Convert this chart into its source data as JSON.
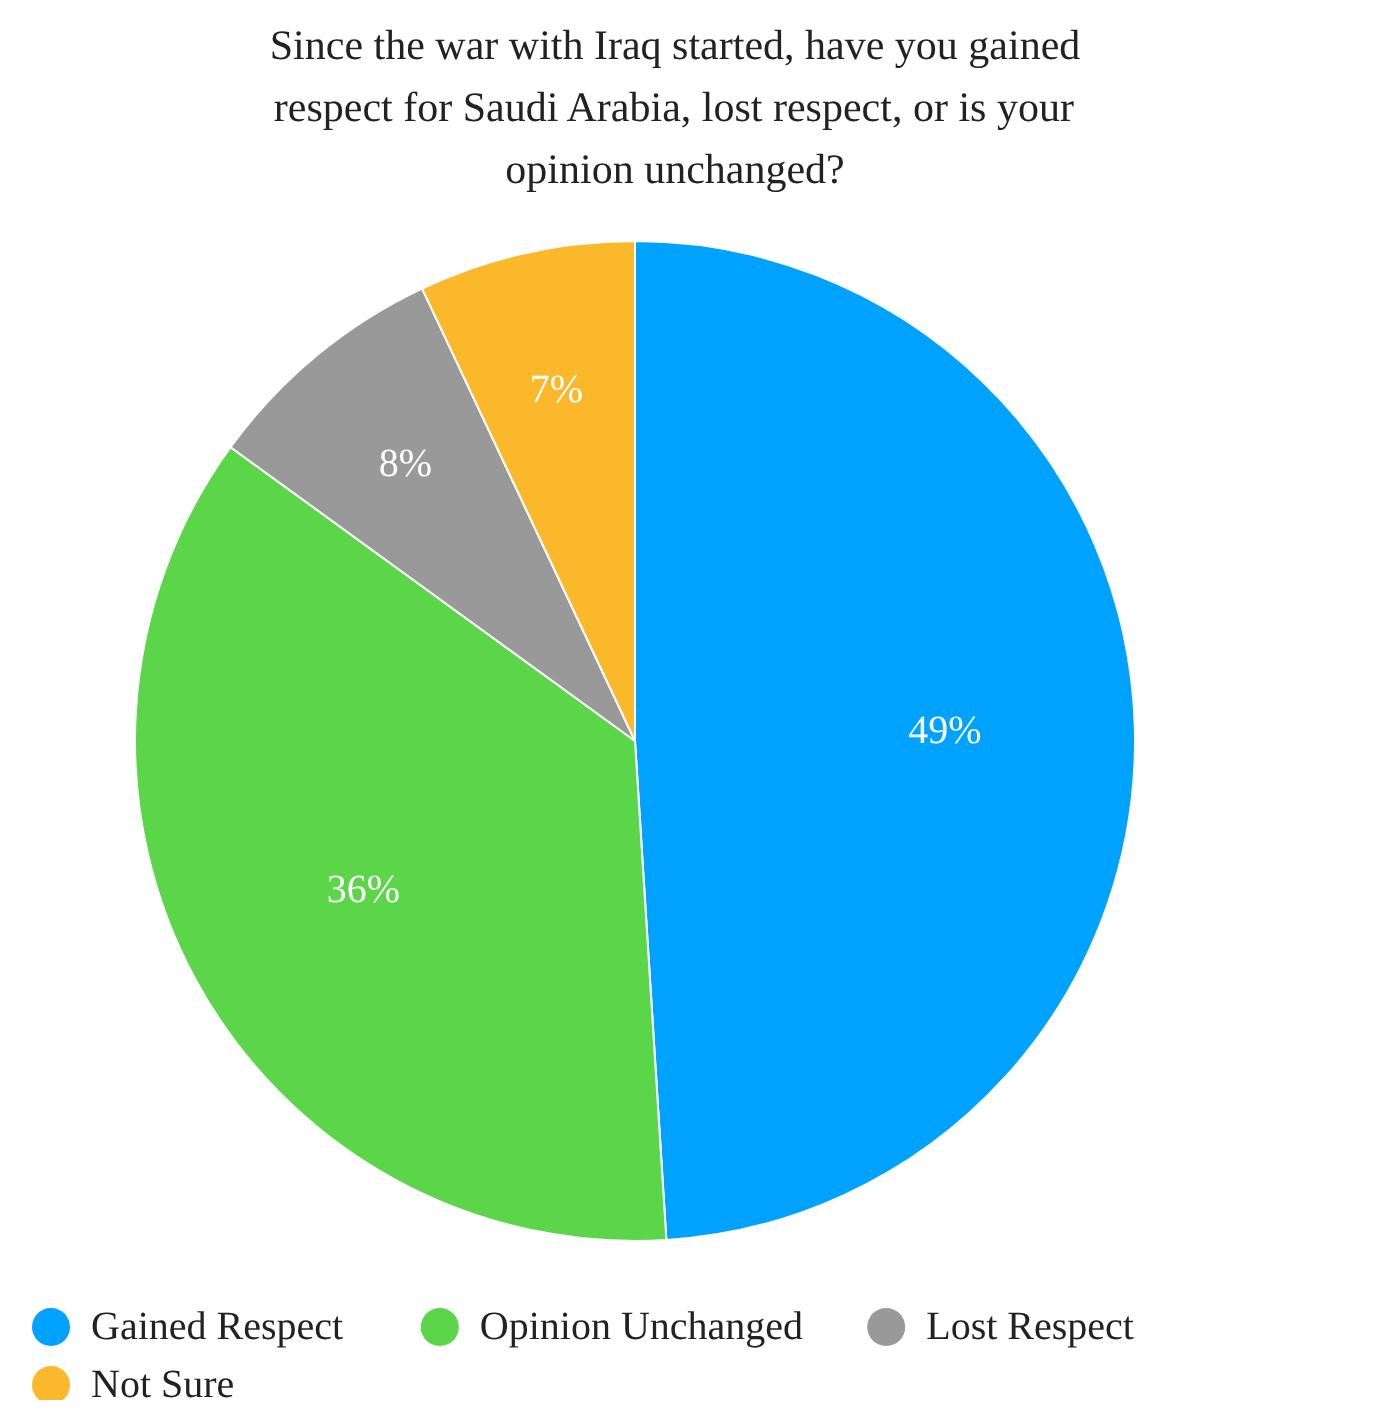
{
  "chart_data": {
    "type": "pie",
    "title": "Since the war with Iraq started, have you gained respect for Saudi Arabia, lost respect, or is your opinion unchanged?",
    "categories": [
      "Gained Respect",
      "Opinion Unchanged",
      "Lost Respect",
      "Not Sure"
    ],
    "values": [
      49,
      36,
      8,
      7
    ],
    "colors": [
      "#00a2ff",
      "#5ad648",
      "#999999",
      "#fbb82b"
    ],
    "value_labels": [
      "49%",
      "36%",
      "8%",
      "7%"
    ],
    "legend": "bottom"
  }
}
